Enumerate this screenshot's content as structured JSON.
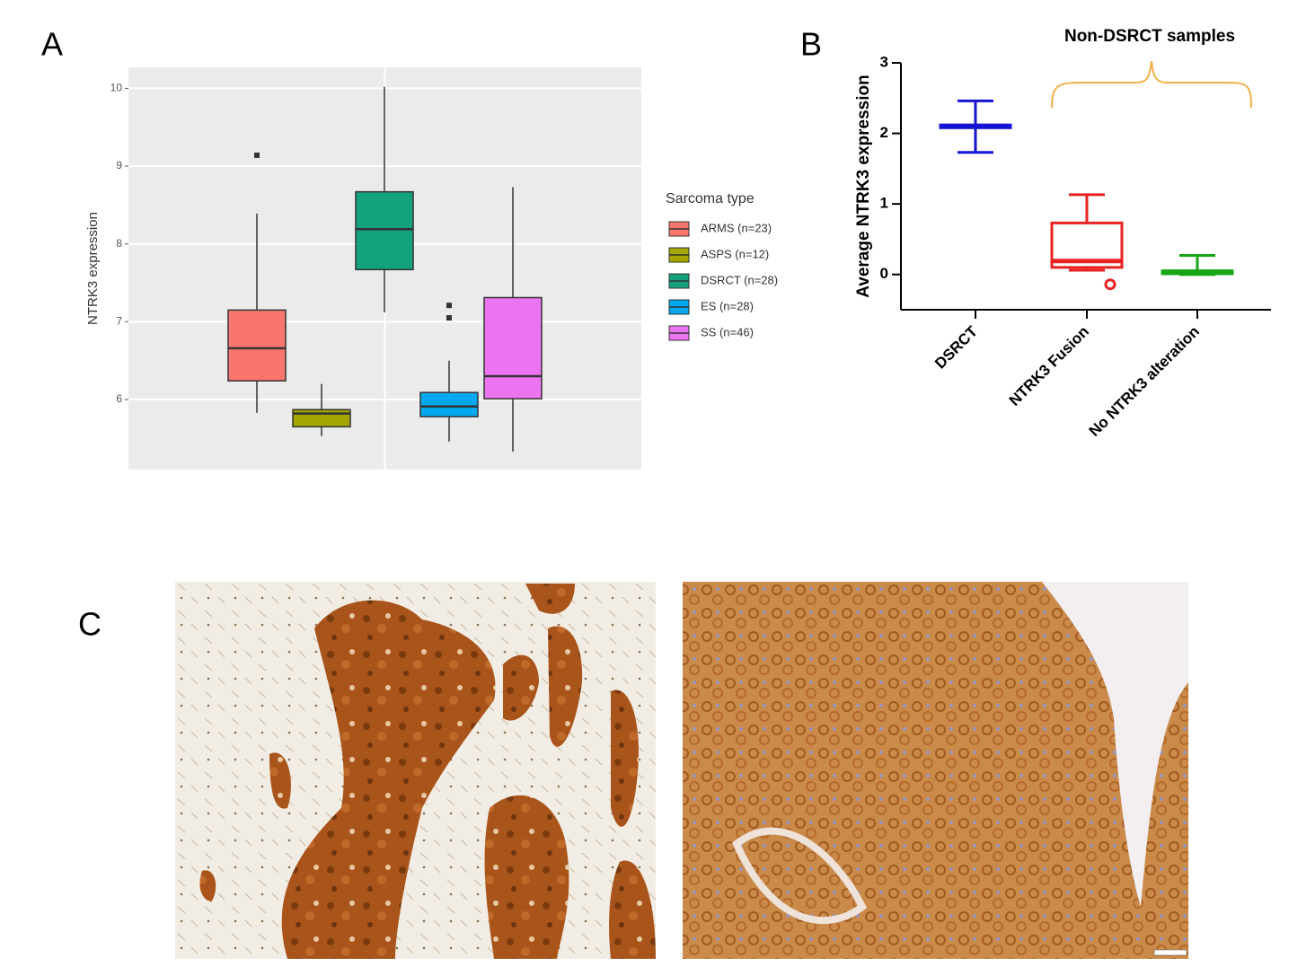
{
  "panel_labels": [
    "A",
    "B",
    "C"
  ],
  "chart_data": [
    {
      "type": "box",
      "y_label": "NTRK3 expression",
      "legend_title": "Sarcoma type",
      "legend": "right",
      "grid": true,
      "ylim": [
        5.1,
        10.27
      ],
      "yticks": [
        6,
        7,
        8,
        9,
        10
      ],
      "boxes": [
        {
          "name": "ARMS (n=23)",
          "color": "#f8766d",
          "min": 5.83,
          "q1": 6.24,
          "median": 6.66,
          "q3": 7.15,
          "max": 8.39,
          "outliers": [
            9.14
          ]
        },
        {
          "name": "ASPS (n=12)",
          "color": "#a3a500",
          "min": 5.53,
          "q1": 5.65,
          "median": 5.82,
          "q3": 5.87,
          "max": 6.2,
          "outliers": []
        },
        {
          "name": "DSRCT (n=28)",
          "color": "#14a27c",
          "min": 7.12,
          "q1": 7.67,
          "median": 8.19,
          "q3": 8.67,
          "max": 10.02,
          "outliers": []
        },
        {
          "name": "ES (n=28)",
          "color": "#00a9ee",
          "min": 5.46,
          "q1": 5.78,
          "median": 5.91,
          "q3": 6.09,
          "max": 6.5,
          "outliers": [
            7.21,
            7.05
          ]
        },
        {
          "name": "SS (n=46)",
          "color": "#ec74f0",
          "min": 5.33,
          "q1": 6.01,
          "median": 6.3,
          "q3": 7.31,
          "max": 8.73,
          "outliers": []
        }
      ]
    },
    {
      "type": "box",
      "y_label": "Average NTRK3 expression",
      "annotation": "Non-DSRCT samples",
      "grid": false,
      "ylim": [
        -0.5,
        3
      ],
      "yticks": [
        0,
        1,
        2,
        3
      ],
      "boxes": [
        {
          "name": "DSRCT",
          "color": "#1414d2",
          "min": 1.73,
          "q1": 2.08,
          "median": 2.1,
          "q3": 2.12,
          "max": 2.46,
          "outliers": []
        },
        {
          "name": "NTRK3 Fusion",
          "color": "#e82222",
          "min": 0.06,
          "q1": 0.1,
          "median": 0.19,
          "q3": 0.73,
          "max": 1.13,
          "outliers": [
            -0.14
          ]
        },
        {
          "name": "No NTRK3 alteration",
          "color": "#14a614",
          "min": 0,
          "q1": 0.01,
          "median": 0.04,
          "q3": 0.05,
          "max": 0.27,
          "outliers": []
        }
      ]
    }
  ]
}
